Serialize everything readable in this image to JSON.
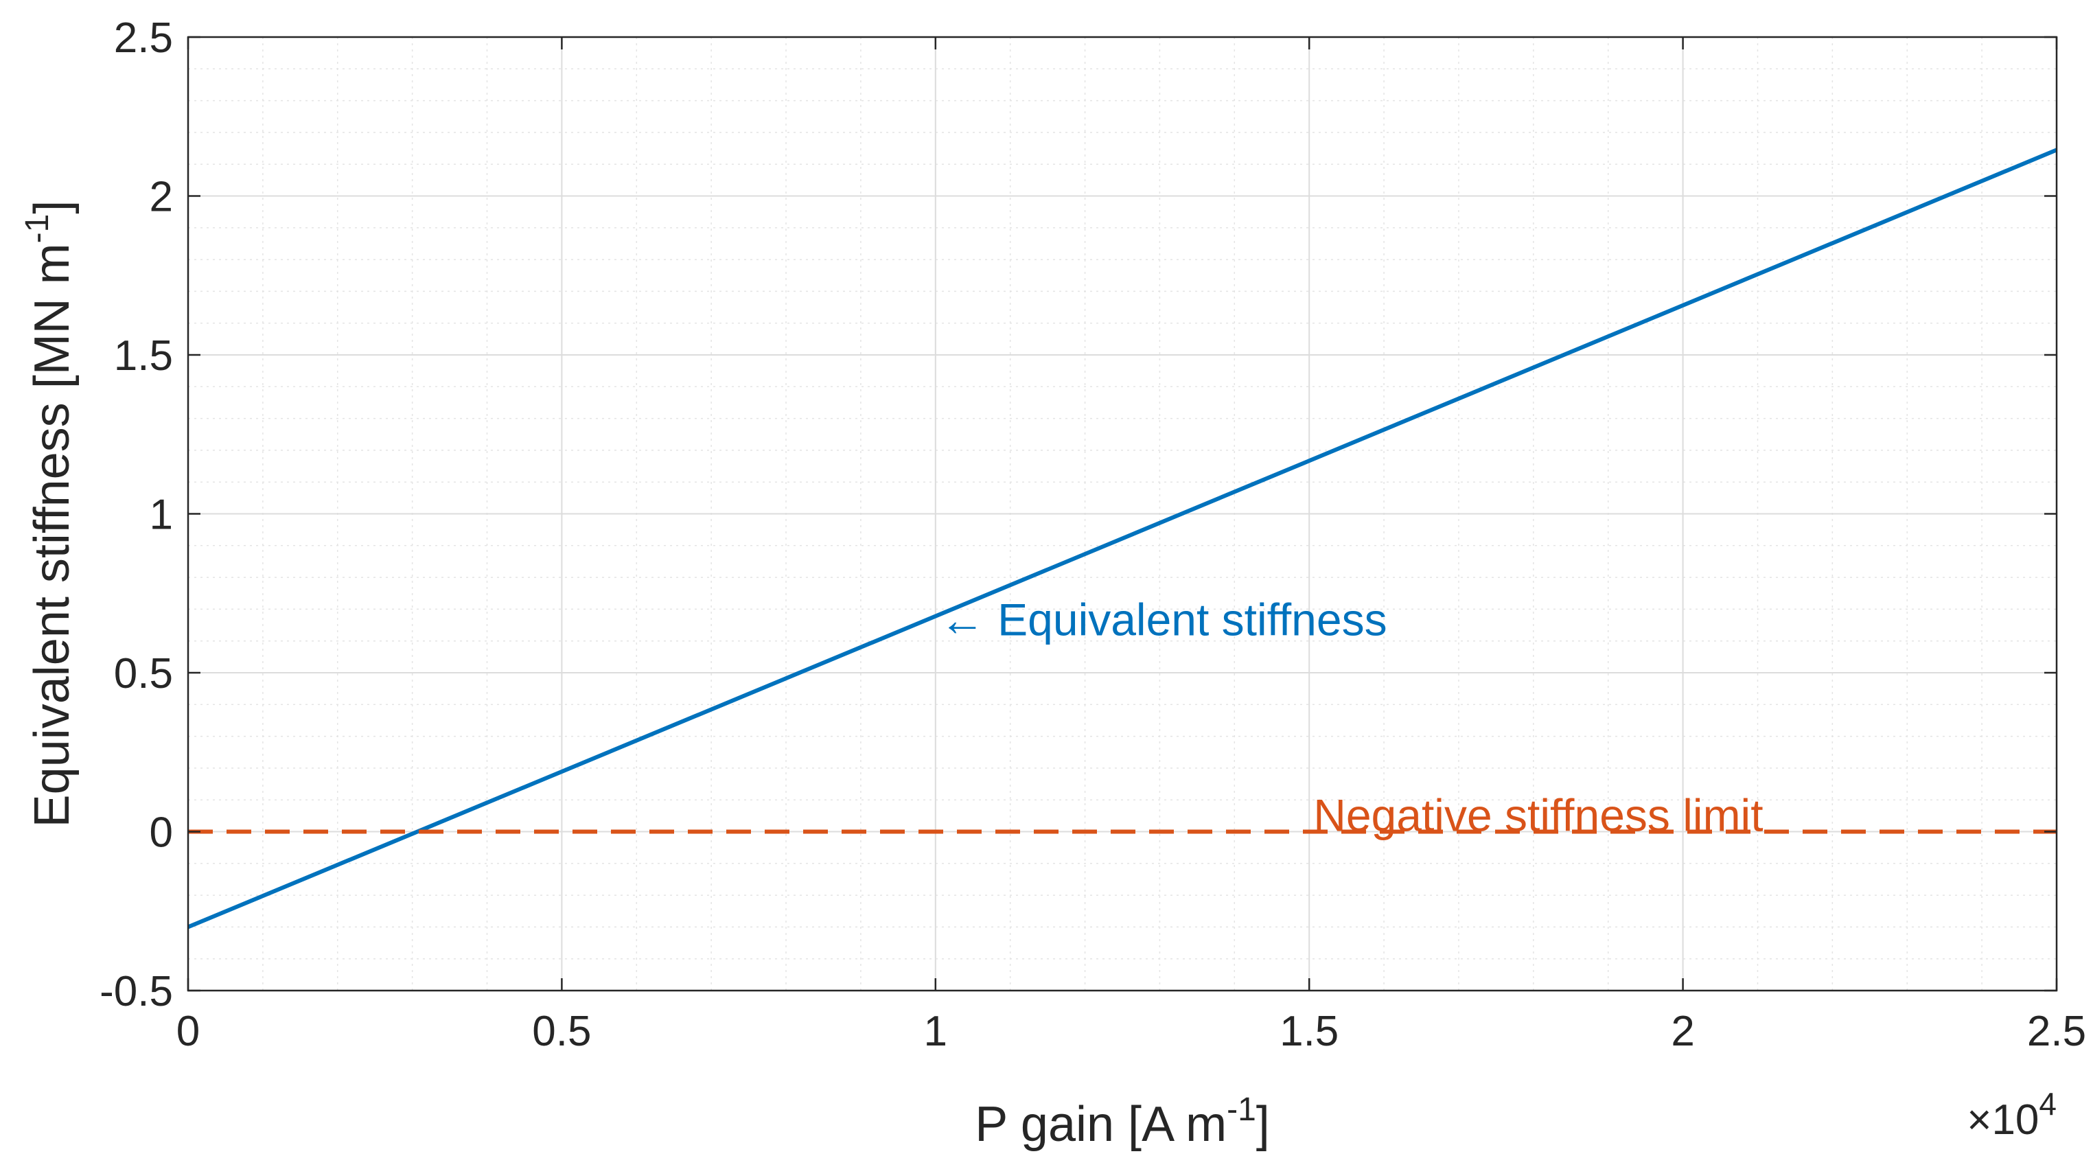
{
  "chart_data": {
    "type": "line",
    "title": "",
    "xlabel": "P gain [A m",
    "xlabel_sup": "-1",
    "xlabel_end": "]",
    "ylabel": "Equivalent stiffness [MN m",
    "ylabel_sup": "-1",
    "ylabel_end": "]",
    "x_multiplier_base": "10",
    "x_multiplier_exp": "4",
    "xlim": [
      0,
      2.5
    ],
    "ylim": [
      -0.5,
      2.5
    ],
    "x_ticks": [
      0,
      0.5,
      1,
      1.5,
      2,
      2.5
    ],
    "x_tick_labels": [
      "0",
      "0.5",
      "1",
      "1.5",
      "2",
      "2.5"
    ],
    "y_ticks": [
      -0.5,
      0,
      0.5,
      1,
      1.5,
      2,
      2.5
    ],
    "y_tick_labels": [
      "-0.5",
      "0",
      "0.5",
      "1",
      "1.5",
      "2",
      "2.5"
    ],
    "grid": true,
    "minor_grid": true,
    "series": [
      {
        "name": "Equivalent stiffness",
        "style": "solid",
        "color": "#0072BD",
        "x": [
          0,
          2.5
        ],
        "y": [
          -0.3,
          2.145
        ]
      },
      {
        "name": "Negative stiffness limit",
        "style": "dashed",
        "color": "#D95319",
        "x": [
          0,
          2.5
        ],
        "y": [
          0,
          0
        ]
      }
    ],
    "annotations": [
      {
        "text": "← Equivalent stiffness",
        "x": 1.0,
        "y": 0.665,
        "color": "#0072BD"
      },
      {
        "text": "Negative stiffness limit",
        "x": 1.5,
        "y": 0.05,
        "color": "#D95319"
      }
    ]
  }
}
